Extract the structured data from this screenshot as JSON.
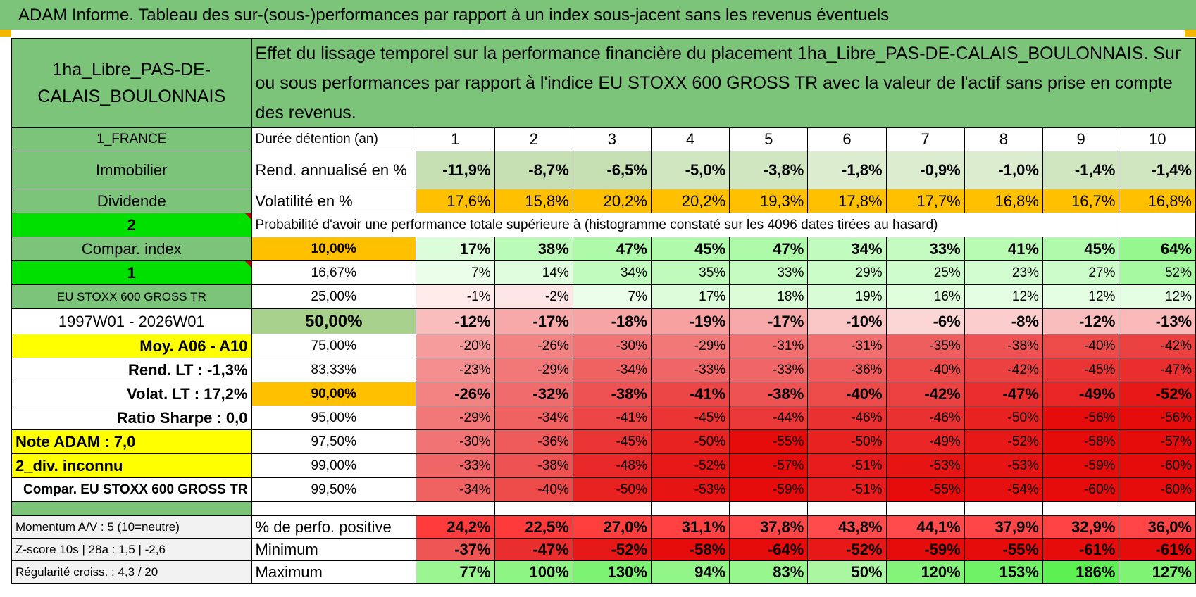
{
  "title": "ADAM Informe. Tableau des sur-(sous-)performances par rapport à un index sous-jacent sans les revenus éventuels",
  "fund_name": "1ha_Libre_PAS-DE-CALAIS_BOULONNAIS",
  "description": "Effet du lissage temporel sur la performance financière du placement 1ha_Libre_PAS-DE-CALAIS_BOULONNAIS. Sur ou sous performances par rapport à l'indice EU STOXX 600 GROSS TR avec la valeur de l'actif sans prise en compte des revenus.",
  "colors": {
    "header_green": "#7cc47a",
    "bright_green": "#00e000",
    "orange": "#ffc000",
    "yellow": "#ffff00",
    "red_text": "#e00000"
  },
  "left_labels": {
    "country": "1_FRANCE",
    "asset_class": "Immobilier",
    "type": "Dividende",
    "selector_1": "2",
    "compar_index": "Compar. index",
    "selector_2": "1",
    "index_name": "EU STOXX 600 GROSS TR",
    "period": "1997W01 - 2026W01",
    "moy": "Moy. A06 - A10",
    "rend_lt": "Rend. LT :    -1,3%",
    "volat_lt": "Volat. LT :    17,2%",
    "ratio_sharpe": "Ratio Sharpe :     0,0",
    "note_adam": "Note ADAM : 7,0",
    "div": "2_div. inconnu",
    "compar_full": "Compar. EU STOXX 600 GROSS TR",
    "momentum": "Momentum A/V : 5 (10=neutre)",
    "zscore": "Z-score 10s | 28a : 1,5 | -2,6",
    "regularite": "Régularité croiss. : 4,3 / 20"
  },
  "row_labels": {
    "duree": "Durée détention (an)",
    "rend": "Rend. annualisé en %",
    "vol": "Volatilité en %",
    "proba": "Probabilité d'avoir une performance totale supérieure à (histogramme constaté sur les 4096 dates tirées au hasard)",
    "pct_pos": "% de perfo. positive",
    "minimum": "Minimum",
    "maximum": "Maximum"
  },
  "years": [
    "1",
    "2",
    "3",
    "4",
    "5",
    "6",
    "7",
    "8",
    "9",
    "10"
  ],
  "rend": [
    "-11,9%",
    "-8,7%",
    "-6,5%",
    "-5,0%",
    "-3,8%",
    "-1,8%",
    "-0,9%",
    "-1,0%",
    "-1,4%",
    "-1,4%"
  ],
  "vol": [
    "17,6%",
    "15,8%",
    "20,2%",
    "20,2%",
    "19,3%",
    "17,8%",
    "17,7%",
    "16,8%",
    "16,7%",
    "16,8%"
  ],
  "percentile_rows": [
    {
      "level": "10,00%",
      "values": [
        "17%",
        "38%",
        "47%",
        "45%",
        "47%",
        "34%",
        "33%",
        "41%",
        "45%",
        "64%"
      ]
    },
    {
      "level": "16,67%",
      "values": [
        "7%",
        "14%",
        "34%",
        "35%",
        "33%",
        "29%",
        "25%",
        "23%",
        "27%",
        "52%"
      ]
    },
    {
      "level": "25,00%",
      "values": [
        "-1%",
        "-2%",
        "7%",
        "17%",
        "18%",
        "19%",
        "16%",
        "12%",
        "12%",
        "12%"
      ]
    },
    {
      "level": "50,00%",
      "values": [
        "-12%",
        "-17%",
        "-18%",
        "-19%",
        "-17%",
        "-10%",
        "-6%",
        "-8%",
        "-12%",
        "-13%"
      ]
    },
    {
      "level": "75,00%",
      "values": [
        "-20%",
        "-26%",
        "-30%",
        "-29%",
        "-31%",
        "-31%",
        "-35%",
        "-38%",
        "-40%",
        "-42%"
      ]
    },
    {
      "level": "83,33%",
      "values": [
        "-23%",
        "-29%",
        "-34%",
        "-33%",
        "-33%",
        "-36%",
        "-40%",
        "-42%",
        "-45%",
        "-47%"
      ]
    },
    {
      "level": "90,00%",
      "values": [
        "-26%",
        "-32%",
        "-38%",
        "-41%",
        "-38%",
        "-40%",
        "-42%",
        "-47%",
        "-49%",
        "-52%"
      ]
    },
    {
      "level": "95,00%",
      "values": [
        "-29%",
        "-34%",
        "-41%",
        "-45%",
        "-44%",
        "-46%",
        "-46%",
        "-50%",
        "-56%",
        "-56%"
      ]
    },
    {
      "level": "97,50%",
      "values": [
        "-30%",
        "-36%",
        "-45%",
        "-50%",
        "-55%",
        "-50%",
        "-49%",
        "-52%",
        "-58%",
        "-57%"
      ]
    },
    {
      "level": "99,00%",
      "values": [
        "-33%",
        "-38%",
        "-48%",
        "-52%",
        "-57%",
        "-51%",
        "-53%",
        "-53%",
        "-59%",
        "-60%"
      ]
    },
    {
      "level": "99,50%",
      "values": [
        "-34%",
        "-40%",
        "-50%",
        "-53%",
        "-59%",
        "-51%",
        "-55%",
        "-54%",
        "-60%",
        "-60%"
      ]
    }
  ],
  "pct_pos": [
    "24,2%",
    "22,5%",
    "27,0%",
    "31,1%",
    "37,8%",
    "43,8%",
    "44,1%",
    "37,9%",
    "32,9%",
    "36,0%"
  ],
  "minimum": [
    "-37%",
    "-47%",
    "-52%",
    "-58%",
    "-64%",
    "-52%",
    "-59%",
    "-55%",
    "-61%",
    "-61%"
  ],
  "maximum": [
    "77%",
    "100%",
    "130%",
    "94%",
    "83%",
    "50%",
    "120%",
    "153%",
    "186%",
    "127%"
  ]
}
